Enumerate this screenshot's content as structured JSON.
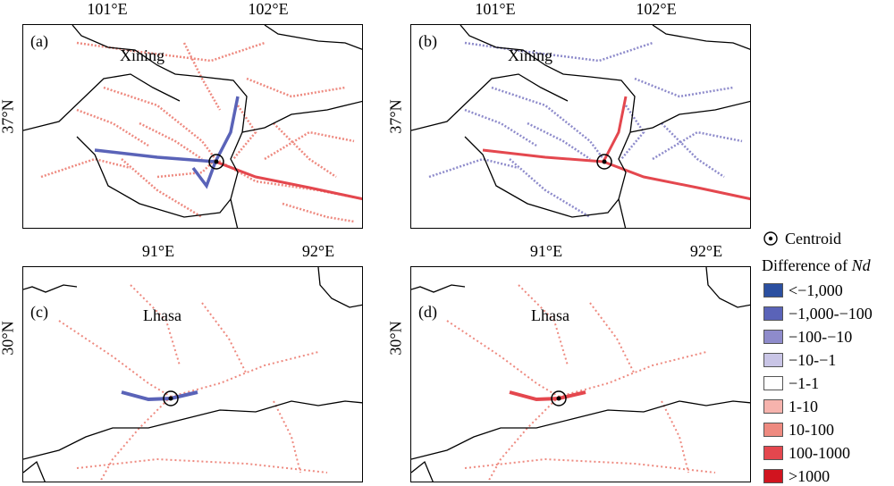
{
  "panels": [
    {
      "id": "a",
      "label": "(a)",
      "city": "Xining",
      "xticks": [
        "101°E",
        "102°E"
      ],
      "ytick": "37°N"
    },
    {
      "id": "b",
      "label": "(b)",
      "city": "Xining",
      "xticks": [
        "101°E",
        "102°E"
      ],
      "ytick": "37°N"
    },
    {
      "id": "c",
      "label": "(c)",
      "city": "Lhasa",
      "xticks": [
        "91°E",
        "92°E"
      ],
      "ytick": "30°N"
    },
    {
      "id": "d",
      "label": "(d)",
      "city": "Lhasa",
      "xticks": [
        "91°E",
        "92°E"
      ],
      "ytick": "30°N"
    }
  ],
  "legend": {
    "centroid_label": "Centroid",
    "title_prefix": "Difference of ",
    "title_var": "Nd",
    "classes": [
      {
        "label": "<−1,000",
        "color": "#2b4fa0"
      },
      {
        "label": "−1,000-−100",
        "color": "#5a63b8"
      },
      {
        "label": "−100-−10",
        "color": "#8e8bcb"
      },
      {
        "label": "−10-−1",
        "color": "#c9c5e6"
      },
      {
        "label": "−1-1",
        "color": "#ffffff"
      },
      {
        "label": "1-10",
        "color": "#f6b3ad"
      },
      {
        "label": "10-100",
        "color": "#ee8a80"
      },
      {
        "label": "100-1000",
        "color": "#e4474e"
      },
      {
        "label": ">1000",
        "color": "#d1141f"
      }
    ]
  }
}
